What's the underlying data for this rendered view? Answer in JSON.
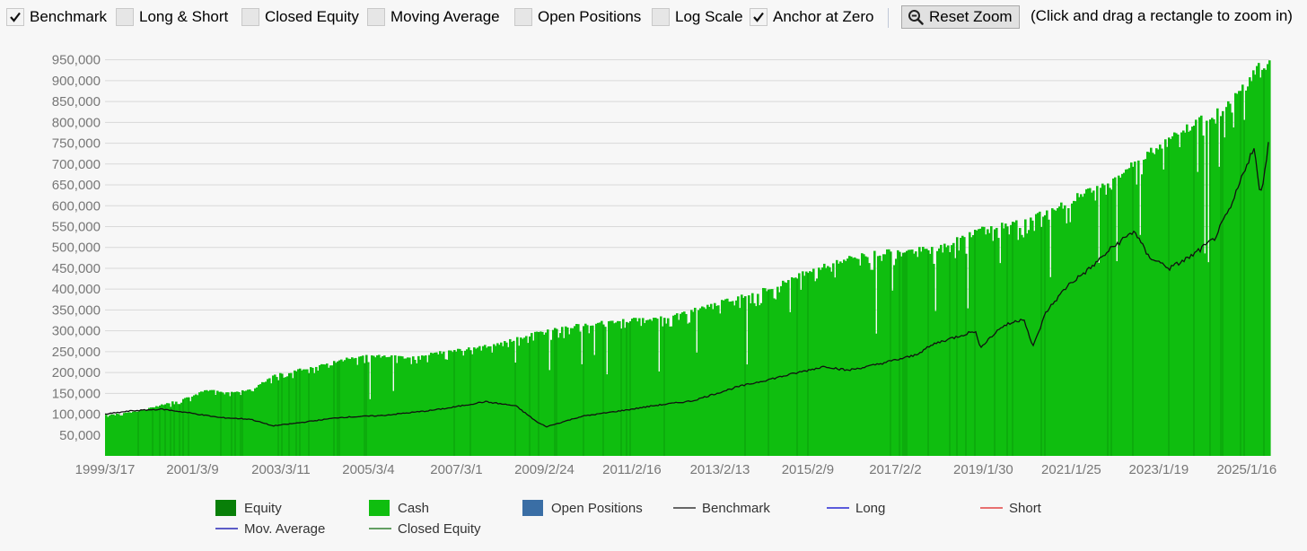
{
  "toolbar": {
    "checkboxes": [
      {
        "label": "Benchmark",
        "checked": true
      },
      {
        "label": "Long & Short",
        "checked": false
      },
      {
        "label": "Closed Equity",
        "checked": false
      },
      {
        "label": "Moving Average",
        "checked": false
      },
      {
        "label": "Open Positions",
        "checked": false
      },
      {
        "label": "Log Scale",
        "checked": false
      },
      {
        "label": "Anchor at Zero",
        "checked": true
      }
    ],
    "reset_zoom_label": "Reset Zoom",
    "hint": "(Click and drag a rectangle to zoom in)"
  },
  "colors": {
    "equity": "#087f08",
    "cash": "#0fbe0f",
    "open_positions": "#3a6ea5",
    "benchmark": "#111111",
    "long": "#0000cc",
    "short": "#e02020",
    "mov_average": "#0000aa",
    "closed_equity": "#0a6a0a",
    "grid": "#d9d9d9"
  },
  "chart_data": {
    "type": "area",
    "ylim": [
      0,
      960000
    ],
    "y_ticks": [
      50000,
      100000,
      150000,
      200000,
      250000,
      300000,
      350000,
      400000,
      450000,
      500000,
      550000,
      600000,
      650000,
      700000,
      750000,
      800000,
      850000,
      900000,
      950000
    ],
    "y_tick_labels": [
      "50,000",
      "100,000",
      "150,000",
      "200,000",
      "250,000",
      "300,000",
      "350,000",
      "400,000",
      "450,000",
      "500,000",
      "550,000",
      "600,000",
      "650,000",
      "700,000",
      "750,000",
      "800,000",
      "850,000",
      "900,000",
      "950,000"
    ],
    "x_tick_labels": [
      "1999/3/17",
      "2001/3/9",
      "2003/3/11",
      "2005/3/4",
      "2007/3/1",
      "2009/2/24",
      "2011/2/16",
      "2013/2/13",
      "2015/2/9",
      "2017/2/2",
      "2019/1/30",
      "2021/1/25",
      "2023/1/19",
      "2025/1/16"
    ],
    "x_tick_years": [
      1999.21,
      2001.19,
      2003.19,
      2005.17,
      2007.16,
      2009.15,
      2011.13,
      2013.12,
      2015.11,
      2017.09,
      2019.08,
      2021.07,
      2023.05,
      2025.04
    ],
    "xlim": [
      1999.21,
      2025.55
    ],
    "legend": [
      {
        "name": "Equity",
        "kind": "box"
      },
      {
        "name": "Cash",
        "kind": "box"
      },
      {
        "name": "Open Positions",
        "kind": "box"
      },
      {
        "name": "Benchmark",
        "kind": "line"
      },
      {
        "name": "Long",
        "kind": "line"
      },
      {
        "name": "Short",
        "kind": "line"
      },
      {
        "name": "Mov. Average",
        "kind": "line"
      },
      {
        "name": "Closed Equity",
        "kind": "line"
      }
    ],
    "series": [
      {
        "name": "Cash",
        "x": [
          1999.21,
          2000.0,
          2001.0,
          2001.5,
          2002.0,
          2002.5,
          2003.0,
          2004.0,
          2005.0,
          2006.0,
          2007.0,
          2008.0,
          2009.0,
          2010.0,
          2011.0,
          2012.0,
          2013.0,
          2014.0,
          2015.0,
          2016.0,
          2017.0,
          2018.0,
          2019.0,
          2020.0,
          2021.0,
          2022.0,
          2022.5,
          2023.0,
          2024.0,
          2024.5,
          2025.0,
          2025.3,
          2025.55
        ],
        "y": [
          100000,
          110000,
          140000,
          160000,
          155000,
          160000,
          195000,
          220000,
          245000,
          240000,
          255000,
          270000,
          300000,
          320000,
          330000,
          340000,
          370000,
          400000,
          445000,
          480000,
          500000,
          505000,
          550000,
          570000,
          620000,
          680000,
          720000,
          750000,
          820000,
          840000,
          900000,
          950000,
          955000
        ]
      },
      {
        "name": "Benchmark",
        "x": [
          1999.21,
          1999.8,
          2000.5,
          2001.0,
          2001.8,
          2002.5,
          2003.0,
          2003.5,
          2004.5,
          2005.5,
          2006.5,
          2007.0,
          2007.8,
          2008.5,
          2009.0,
          2009.2,
          2010.0,
          2011.0,
          2011.6,
          2012.5,
          2013.5,
          2014.5,
          2015.5,
          2016.0,
          2016.5,
          2017.5,
          2018.0,
          2018.9,
          2019.0,
          2019.5,
          2020.0,
          2020.2,
          2020.5,
          2021.0,
          2021.5,
          2022.0,
          2022.5,
          2022.8,
          2023.3,
          2023.8,
          2024.3,
          2024.7,
          2025.0,
          2025.2,
          2025.35,
          2025.55
        ],
        "y": [
          100000,
          108000,
          112000,
          105000,
          92000,
          88000,
          72000,
          78000,
          92000,
          97000,
          108000,
          115000,
          130000,
          120000,
          80000,
          70000,
          95000,
          110000,
          120000,
          132000,
          165000,
          190000,
          215000,
          205000,
          215000,
          240000,
          270000,
          300000,
          260000,
          310000,
          330000,
          260000,
          345000,
          410000,
          450000,
          500000,
          540000,
          480000,
          450000,
          480000,
          520000,
          600000,
          690000,
          740000,
          620000,
          760000
        ]
      }
    ]
  }
}
